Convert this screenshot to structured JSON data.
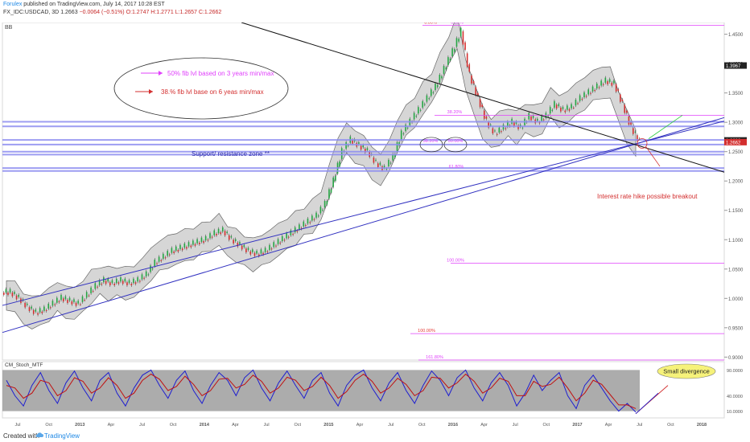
{
  "header": {
    "publisher": "Forulex",
    "published_line": "published on TradingView.com, July 14, 2017 10:28 EST",
    "symbol_line": "FX_IDC:USDCAD, 3D",
    "last": "1.2663",
    "change": "−0.0064 (−0.51%)",
    "ohlc": "O:1.2747 H:1.2771 L:1.2657 C:1.2662",
    "indicator_label": "BB"
  },
  "footer": {
    "created_with": "Created with",
    "brand": "TradingView"
  },
  "colors": {
    "candle_up": "#26a644",
    "candle_down": "#d32f2f",
    "bb_fill": "#c8c8c8",
    "zone": "#8c8cf0",
    "fib": "#e040fb",
    "trend": "#3030c0",
    "stoch_k": "#1f1fd0",
    "stoch_d": "#c01010"
  },
  "chart_data": [
    {
      "type": "candlestick",
      "title": "",
      "x_ticks": [
        "Jul",
        "Oct",
        "2013",
        "Apr",
        "Jul",
        "Oct",
        "2014",
        "Apr",
        "Jul",
        "Oct",
        "2015",
        "Apr",
        "Jul",
        "Oct",
        "2016",
        "Apr",
        "Jul",
        "Oct",
        "2017",
        "Apr",
        "Jul",
        "Oct",
        "2018"
      ],
      "y_ticks": [
        "1.4500",
        "1.4000",
        "1.3500",
        "1.3000",
        "1.2500",
        "1.2000",
        "1.1500",
        "1.1000",
        "1.0500",
        "1.0000",
        "0.9500",
        "0.9000"
      ],
      "ylim": [
        0.895,
        1.47
      ],
      "price_labels": [
        "1.3967",
        "1.2692",
        "1.2662"
      ],
      "fib_labels": [
        "0.00%",
        "0.00%",
        "38.20%",
        "38.20%",
        "50.00%",
        "61.80%",
        "100.00%",
        "100.00%",
        "161.80%"
      ],
      "annotations": {
        "legend_pink": "50% fib lvl based on 3 years min/max",
        "legend_red": "38.% fib lvl base on 6 yeas min/max",
        "zone": "Support/ resistance zone **",
        "breakout": "Interest rate hike possible breakout"
      },
      "closes": [
        1.01,
        1.0,
        0.985,
        0.975,
        0.98,
        0.99,
        1.0,
        0.995,
        0.99,
        1.005,
        1.02,
        1.03,
        1.025,
        1.03,
        1.025,
        1.03,
        1.04,
        1.06,
        1.07,
        1.08,
        1.085,
        1.09,
        1.095,
        1.1,
        1.11,
        1.115,
        1.1,
        1.09,
        1.08,
        1.075,
        1.08,
        1.09,
        1.1,
        1.11,
        1.12,
        1.13,
        1.14,
        1.16,
        1.2,
        1.25,
        1.27,
        1.26,
        1.25,
        1.23,
        1.22,
        1.24,
        1.28,
        1.3,
        1.32,
        1.34,
        1.36,
        1.39,
        1.42,
        1.455,
        1.38,
        1.34,
        1.3,
        1.28,
        1.29,
        1.3,
        1.29,
        1.31,
        1.3,
        1.31,
        1.33,
        1.32,
        1.325,
        1.34,
        1.35,
        1.36,
        1.37,
        1.365,
        1.33,
        1.29,
        1.266
      ]
    },
    {
      "type": "line",
      "title": "CM_Stoch_MTF",
      "y_ticks": [
        "90.0000",
        "40.0000",
        "10.0000"
      ],
      "ylim": [
        0,
        100
      ],
      "note": "Small divergence",
      "series": [
        {
          "values": [
            70,
            40,
            20,
            60,
            85,
            50,
            25,
            65,
            88,
            55,
            30,
            70,
            85,
            45,
            20,
            55,
            80,
            90,
            60,
            35,
            70,
            88,
            50,
            25,
            60,
            85,
            70,
            40,
            75,
            90,
            55,
            30,
            65,
            88,
            60,
            35,
            70,
            85,
            45,
            20,
            60,
            80,
            90,
            55,
            30,
            65,
            85,
            50,
            25,
            60,
            88,
            70,
            40,
            75,
            90,
            55,
            30,
            65,
            85,
            60,
            20,
            45,
            80,
            50,
            70,
            85,
            40,
            15,
            60,
            80,
            55,
            30,
            10,
            25,
            8
          ]
        },
        {
          "values": [
            60,
            55,
            35,
            45,
            70,
            65,
            40,
            50,
            75,
            68,
            45,
            55,
            75,
            60,
            35,
            45,
            70,
            82,
            72,
            50,
            58,
            78,
            62,
            40,
            50,
            72,
            74,
            55,
            62,
            80,
            68,
            45,
            55,
            76,
            70,
            50,
            58,
            76,
            60,
            35,
            48,
            70,
            82,
            68,
            45,
            55,
            74,
            62,
            40,
            50,
            76,
            74,
            55,
            65,
            82,
            68,
            45,
            55,
            74,
            68,
            40,
            40,
            68,
            58,
            62,
            76,
            55,
            30,
            45,
            70,
            62,
            42,
            22,
            22,
            15
          ]
        }
      ]
    }
  ]
}
